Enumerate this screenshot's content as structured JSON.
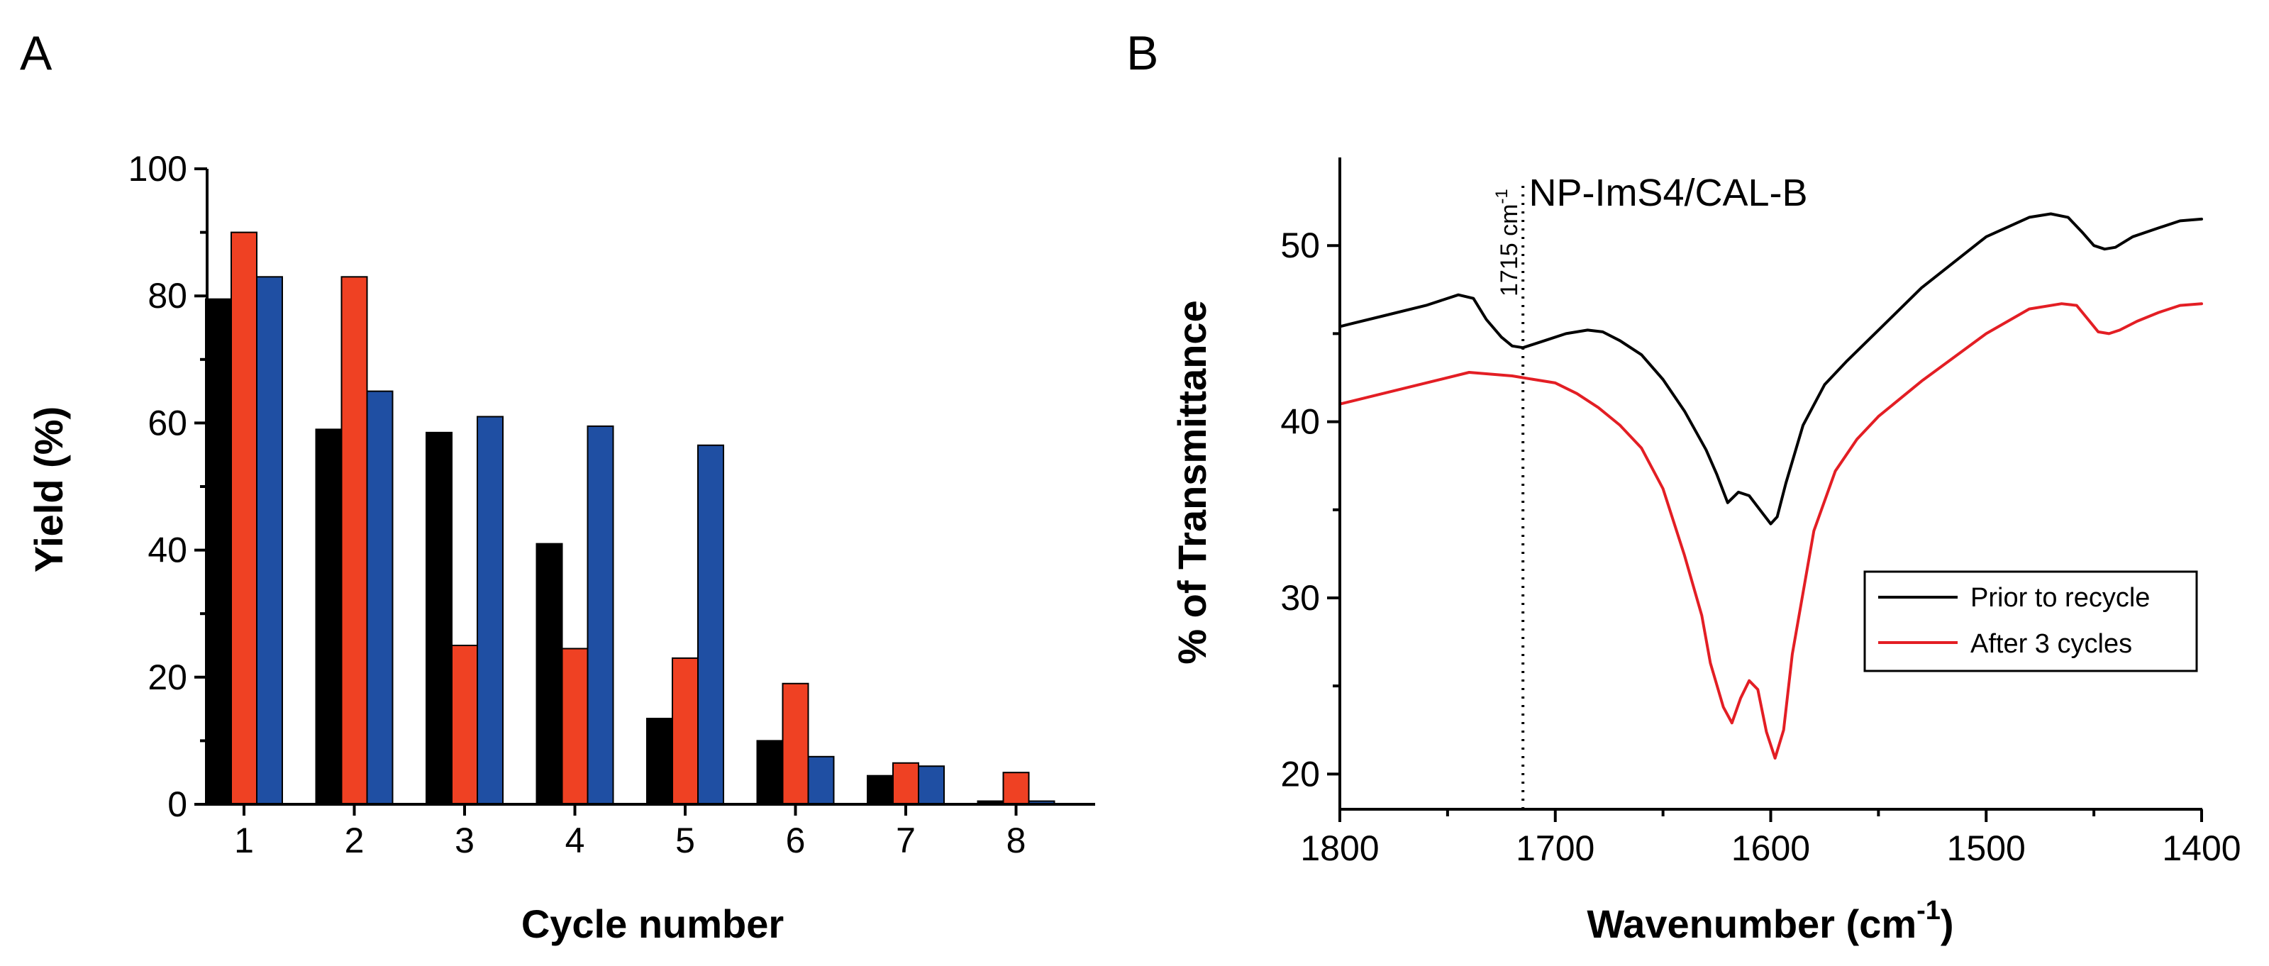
{
  "panel_labels": {
    "a": "A",
    "b": "B"
  },
  "chart_data": [
    {
      "type": "bar",
      "panel": "A",
      "xlabel": "Cycle number",
      "ylabel": "Yield (%)",
      "ylim": [
        0,
        100
      ],
      "yticks": [
        0,
        20,
        40,
        60,
        80,
        100
      ],
      "categories": [
        "1",
        "2",
        "3",
        "4",
        "5",
        "6",
        "7",
        "8"
      ],
      "series": [
        {
          "name": "series-black",
          "color": "#000000",
          "values": [
            79.5,
            59,
            58.5,
            41,
            13.5,
            10,
            4.5,
            0.5
          ]
        },
        {
          "name": "series-red",
          "color": "#ef4123",
          "values": [
            90,
            83,
            25,
            24.5,
            23,
            19,
            6.5,
            5
          ]
        },
        {
          "name": "series-blue",
          "color": "#1f4fa3",
          "values": [
            83,
            65,
            61,
            59.5,
            56.5,
            7.5,
            6,
            0.5
          ]
        }
      ]
    },
    {
      "type": "line",
      "panel": "B",
      "title": "NP-ImS4/CAL-B",
      "xlabel": "Wavenumber (cm",
      "xlabel_sup": "-1",
      "xlabel_close": ")",
      "ylabel": "% of Transmittance",
      "xlim": [
        1800,
        1400
      ],
      "ylim": [
        18,
        55
      ],
      "xticks": [
        1800,
        1700,
        1600,
        1500,
        1400
      ],
      "yticks": [
        20,
        30,
        40,
        50
      ],
      "annotation": {
        "text": "1715 cm",
        "sup": "-1",
        "x": 1715
      },
      "legend_position": "right-center",
      "series": [
        {
          "name": "Prior to recycle",
          "color": "#000000",
          "x": [
            1800,
            1780,
            1760,
            1745,
            1738,
            1732,
            1725,
            1720,
            1715,
            1705,
            1695,
            1685,
            1678,
            1670,
            1660,
            1650,
            1640,
            1630,
            1625,
            1620,
            1615,
            1610,
            1605,
            1600,
            1597,
            1593,
            1585,
            1575,
            1565,
            1550,
            1530,
            1500,
            1480,
            1470,
            1462,
            1455,
            1450,
            1445,
            1440,
            1432,
            1420,
            1410,
            1400
          ],
          "y": [
            45.4,
            46.0,
            46.6,
            47.2,
            47.0,
            45.8,
            44.8,
            44.3,
            44.2,
            44.6,
            45.0,
            45.2,
            45.1,
            44.6,
            43.8,
            42.4,
            40.6,
            38.4,
            37.0,
            35.4,
            36.0,
            35.8,
            35.0,
            34.2,
            34.6,
            36.5,
            39.8,
            42.1,
            43.4,
            45.2,
            47.6,
            50.5,
            51.6,
            51.8,
            51.6,
            50.7,
            50.0,
            49.8,
            49.9,
            50.5,
            51.0,
            51.4,
            51.5
          ]
        },
        {
          "name": "After 3 cycles",
          "color": "#e31e24",
          "x": [
            1800,
            1780,
            1760,
            1740,
            1730,
            1720,
            1710,
            1700,
            1690,
            1680,
            1670,
            1660,
            1650,
            1640,
            1632,
            1628,
            1622,
            1618,
            1614,
            1610,
            1606,
            1602,
            1598,
            1594,
            1590,
            1580,
            1570,
            1560,
            1550,
            1530,
            1500,
            1480,
            1465,
            1458,
            1452,
            1448,
            1443,
            1438,
            1430,
            1420,
            1410,
            1400
          ],
          "y": [
            41.0,
            41.6,
            42.2,
            42.8,
            42.7,
            42.6,
            42.4,
            42.2,
            41.6,
            40.8,
            39.8,
            38.5,
            36.2,
            32.4,
            29.0,
            26.3,
            23.8,
            22.9,
            24.3,
            25.3,
            24.8,
            22.4,
            20.9,
            22.5,
            26.8,
            33.8,
            37.2,
            39.0,
            40.3,
            42.3,
            45.0,
            46.4,
            46.7,
            46.6,
            45.7,
            45.1,
            45.0,
            45.2,
            45.7,
            46.2,
            46.6,
            46.7
          ]
        }
      ]
    }
  ]
}
